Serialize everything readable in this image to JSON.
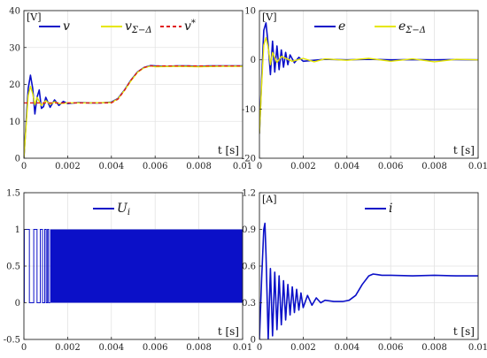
{
  "chart_data": [
    {
      "type": "line",
      "unit_label": "[V]",
      "xlabel": "t  [s]",
      "xlim": [
        0,
        0.01
      ],
      "ylim": [
        0,
        40
      ],
      "xticks": [
        0,
        0.002,
        0.004,
        0.006,
        0.008,
        0.01
      ],
      "xtick_labels": [
        "0",
        "0.002",
        "0.004",
        "0.006",
        "0.008",
        "0.01"
      ],
      "yticks": [
        0,
        10,
        20,
        30,
        40
      ],
      "ytick_labels": [
        "0",
        "10",
        "20",
        "30",
        "40"
      ],
      "grid": true,
      "legend_placement": "top",
      "series": [
        {
          "name": "v",
          "color": "#0b10c8",
          "style": "solid",
          "x": [
            0,
            0.0001,
            0.0002,
            0.0003,
            0.0004,
            0.0005,
            0.0006,
            0.0007,
            0.0008,
            0.0009,
            0.001,
            0.0012,
            0.0014,
            0.0016,
            0.0018,
            0.002,
            0.0025,
            0.003,
            0.0035,
            0.004,
            0.0043,
            0.0046,
            0.0049,
            0.0052,
            0.0055,
            0.0058,
            0.006,
            0.0065,
            0.007,
            0.0075,
            0.008,
            0.0085,
            0.009,
            0.0095,
            0.01
          ],
          "values": [
            0,
            10,
            19,
            22.5,
            19,
            12,
            16.5,
            18.5,
            13.5,
            14,
            16.5,
            13.8,
            15.8,
            14.3,
            15.4,
            14.8,
            15.1,
            15,
            15,
            15.2,
            16.2,
            18.5,
            21.2,
            23.4,
            24.6,
            25.1,
            25,
            24.9,
            25,
            25,
            24.9,
            25,
            25,
            25,
            25
          ]
        },
        {
          "name": "v_Σ−Δ",
          "color": "#e6e600",
          "style": "solid",
          "x": [
            0,
            0.0001,
            0.0002,
            0.0003,
            0.0004,
            0.0005,
            0.0006,
            0.0008,
            0.001,
            0.0012,
            0.0014,
            0.0016,
            0.002,
            0.003,
            0.004,
            0.0043,
            0.0046,
            0.0049,
            0.0052,
            0.0055,
            0.0058,
            0.006,
            0.007,
            0.008,
            0.009,
            0.01
          ],
          "values": [
            0,
            9,
            17,
            19.5,
            17.5,
            14.5,
            16.5,
            14.3,
            15.6,
            14.6,
            15.3,
            14.8,
            15,
            15,
            15.1,
            16.1,
            18.4,
            21,
            23.3,
            24.5,
            25,
            24.8,
            24.9,
            24.8,
            24.9,
            24.9
          ]
        },
        {
          "name": "v*",
          "color": "#e01a1a",
          "style": "dashed",
          "x": [
            0,
            0.004,
            0.0043,
            0.0046,
            0.0049,
            0.0052,
            0.0055,
            0.0058,
            0.006,
            0.01
          ],
          "values": [
            15,
            15,
            16,
            18.4,
            21.2,
            23.4,
            24.6,
            25,
            25,
            25
          ]
        }
      ]
    },
    {
      "type": "line",
      "unit_label": "[V]",
      "xlabel": "t  [s]",
      "xlim": [
        0,
        0.01
      ],
      "ylim": [
        -20,
        10
      ],
      "xticks": [
        0,
        0.002,
        0.004,
        0.006,
        0.008,
        0.01
      ],
      "xtick_labels": [
        "0",
        "0.002",
        "0.004",
        "0.006",
        "0.008",
        "0.01"
      ],
      "yticks": [
        -20,
        -10,
        0,
        10
      ],
      "ytick_labels": [
        "-20",
        "-10",
        "0",
        "10"
      ],
      "grid": true,
      "legend_placement": "top",
      "series": [
        {
          "name": "e",
          "color": "#0b10c8",
          "style": "solid",
          "x": [
            0,
            0.0001,
            0.0002,
            0.0003,
            0.0004,
            0.0005,
            0.0006,
            0.0007,
            0.0008,
            0.0009,
            0.001,
            0.0011,
            0.0012,
            0.0013,
            0.0014,
            0.0016,
            0.0018,
            0.002,
            0.003,
            0.004,
            0.005,
            0.006,
            0.007,
            0.008,
            0.009,
            0.01
          ],
          "values": [
            -15,
            -4,
            6,
            7.5,
            3,
            -3,
            3.8,
            -2.5,
            2.8,
            -2,
            2,
            -1.5,
            1.5,
            -1,
            1,
            -0.6,
            0.5,
            -0.3,
            0.1,
            0,
            0.1,
            0,
            0.05,
            0,
            0.05,
            0
          ]
        },
        {
          "name": "e_Σ−Δ",
          "color": "#e6e600",
          "style": "solid",
          "x": [
            0,
            0.0001,
            0.0002,
            0.0003,
            0.0004,
            0.0005,
            0.0006,
            0.0008,
            0.001,
            0.0015,
            0.002,
            0.0025,
            0.003,
            0.004,
            0.005,
            0.006,
            0.007,
            0.008,
            0.009,
            0.01
          ],
          "values": [
            -15,
            -5,
            3,
            4.5,
            2.5,
            -1,
            1.5,
            -0.5,
            0.7,
            -0.3,
            0.3,
            -0.4,
            0.2,
            -0.1,
            0.3,
            -0.3,
            0.2,
            -0.4,
            0.1,
            0
          ]
        }
      ]
    },
    {
      "type": "line",
      "xlabel": "t  [s]",
      "xlim": [
        0,
        0.01
      ],
      "ylim": [
        -0.5,
        1.5
      ],
      "xticks": [
        0,
        0.002,
        0.004,
        0.006,
        0.008,
        0.01
      ],
      "xtick_labels": [
        "0",
        "0.002",
        "0.004",
        "0.006",
        "0.008",
        "0.01"
      ],
      "yticks": [
        -0.5,
        0,
        0.5,
        1,
        1.5
      ],
      "ytick_labels": [
        "-0.5",
        "0",
        "0.5",
        "1",
        "1.5"
      ],
      "grid": true,
      "legend_placement": "top",
      "pulse_train": {
        "low": 0,
        "high": 1,
        "dense_from": 0.0012,
        "switch_times": [
          2e-05,
          0.00025,
          0.00045,
          0.0006,
          0.00075,
          0.00085,
          0.00095,
          0.00102,
          0.00108,
          0.00113
        ]
      },
      "series": [
        {
          "name": "U_i",
          "color": "#0b10c8",
          "style": "solid"
        }
      ]
    },
    {
      "type": "line",
      "unit_label": "[A]",
      "xlabel": "t  [s]",
      "xlim": [
        0,
        0.01
      ],
      "ylim": [
        0,
        1.2
      ],
      "xticks": [
        0,
        0.002,
        0.004,
        0.006,
        0.008,
        0.01
      ],
      "xtick_labels": [
        "0",
        "0.002",
        "0.004",
        "0.006",
        "0.008",
        "0.01"
      ],
      "yticks": [
        0,
        0.3,
        0.6,
        0.9,
        1.2
      ],
      "ytick_labels": [
        "0",
        "0.3",
        "0.6",
        "0.9",
        "1.2"
      ],
      "grid": true,
      "legend_placement": "top",
      "series": [
        {
          "name": "i",
          "color": "#0b10c8",
          "style": "solid",
          "x": [
            0,
            0.0001,
            0.0002,
            0.00025,
            0.0003,
            0.0004,
            0.0005,
            0.0006,
            0.0007,
            0.0008,
            0.0009,
            0.001,
            0.0011,
            0.0012,
            0.0013,
            0.0014,
            0.0015,
            0.0016,
            0.0017,
            0.0018,
            0.0019,
            0.002,
            0.0022,
            0.0024,
            0.0026,
            0.0028,
            0.003,
            0.0034,
            0.0038,
            0.0041,
            0.0044,
            0.0047,
            0.005,
            0.0052,
            0.0054,
            0.0056,
            0.006,
            0.007,
            0.008,
            0.009,
            0.01
          ],
          "values": [
            0,
            0.5,
            0.9,
            0.95,
            0.7,
            0,
            0.58,
            0.03,
            0.55,
            0.08,
            0.52,
            0.12,
            0.48,
            0.16,
            0.45,
            0.2,
            0.43,
            0.22,
            0.41,
            0.24,
            0.38,
            0.26,
            0.36,
            0.28,
            0.34,
            0.3,
            0.32,
            0.31,
            0.31,
            0.32,
            0.36,
            0.45,
            0.52,
            0.535,
            0.53,
            0.525,
            0.525,
            0.52,
            0.525,
            0.52,
            0.52
          ]
        }
      ]
    }
  ]
}
